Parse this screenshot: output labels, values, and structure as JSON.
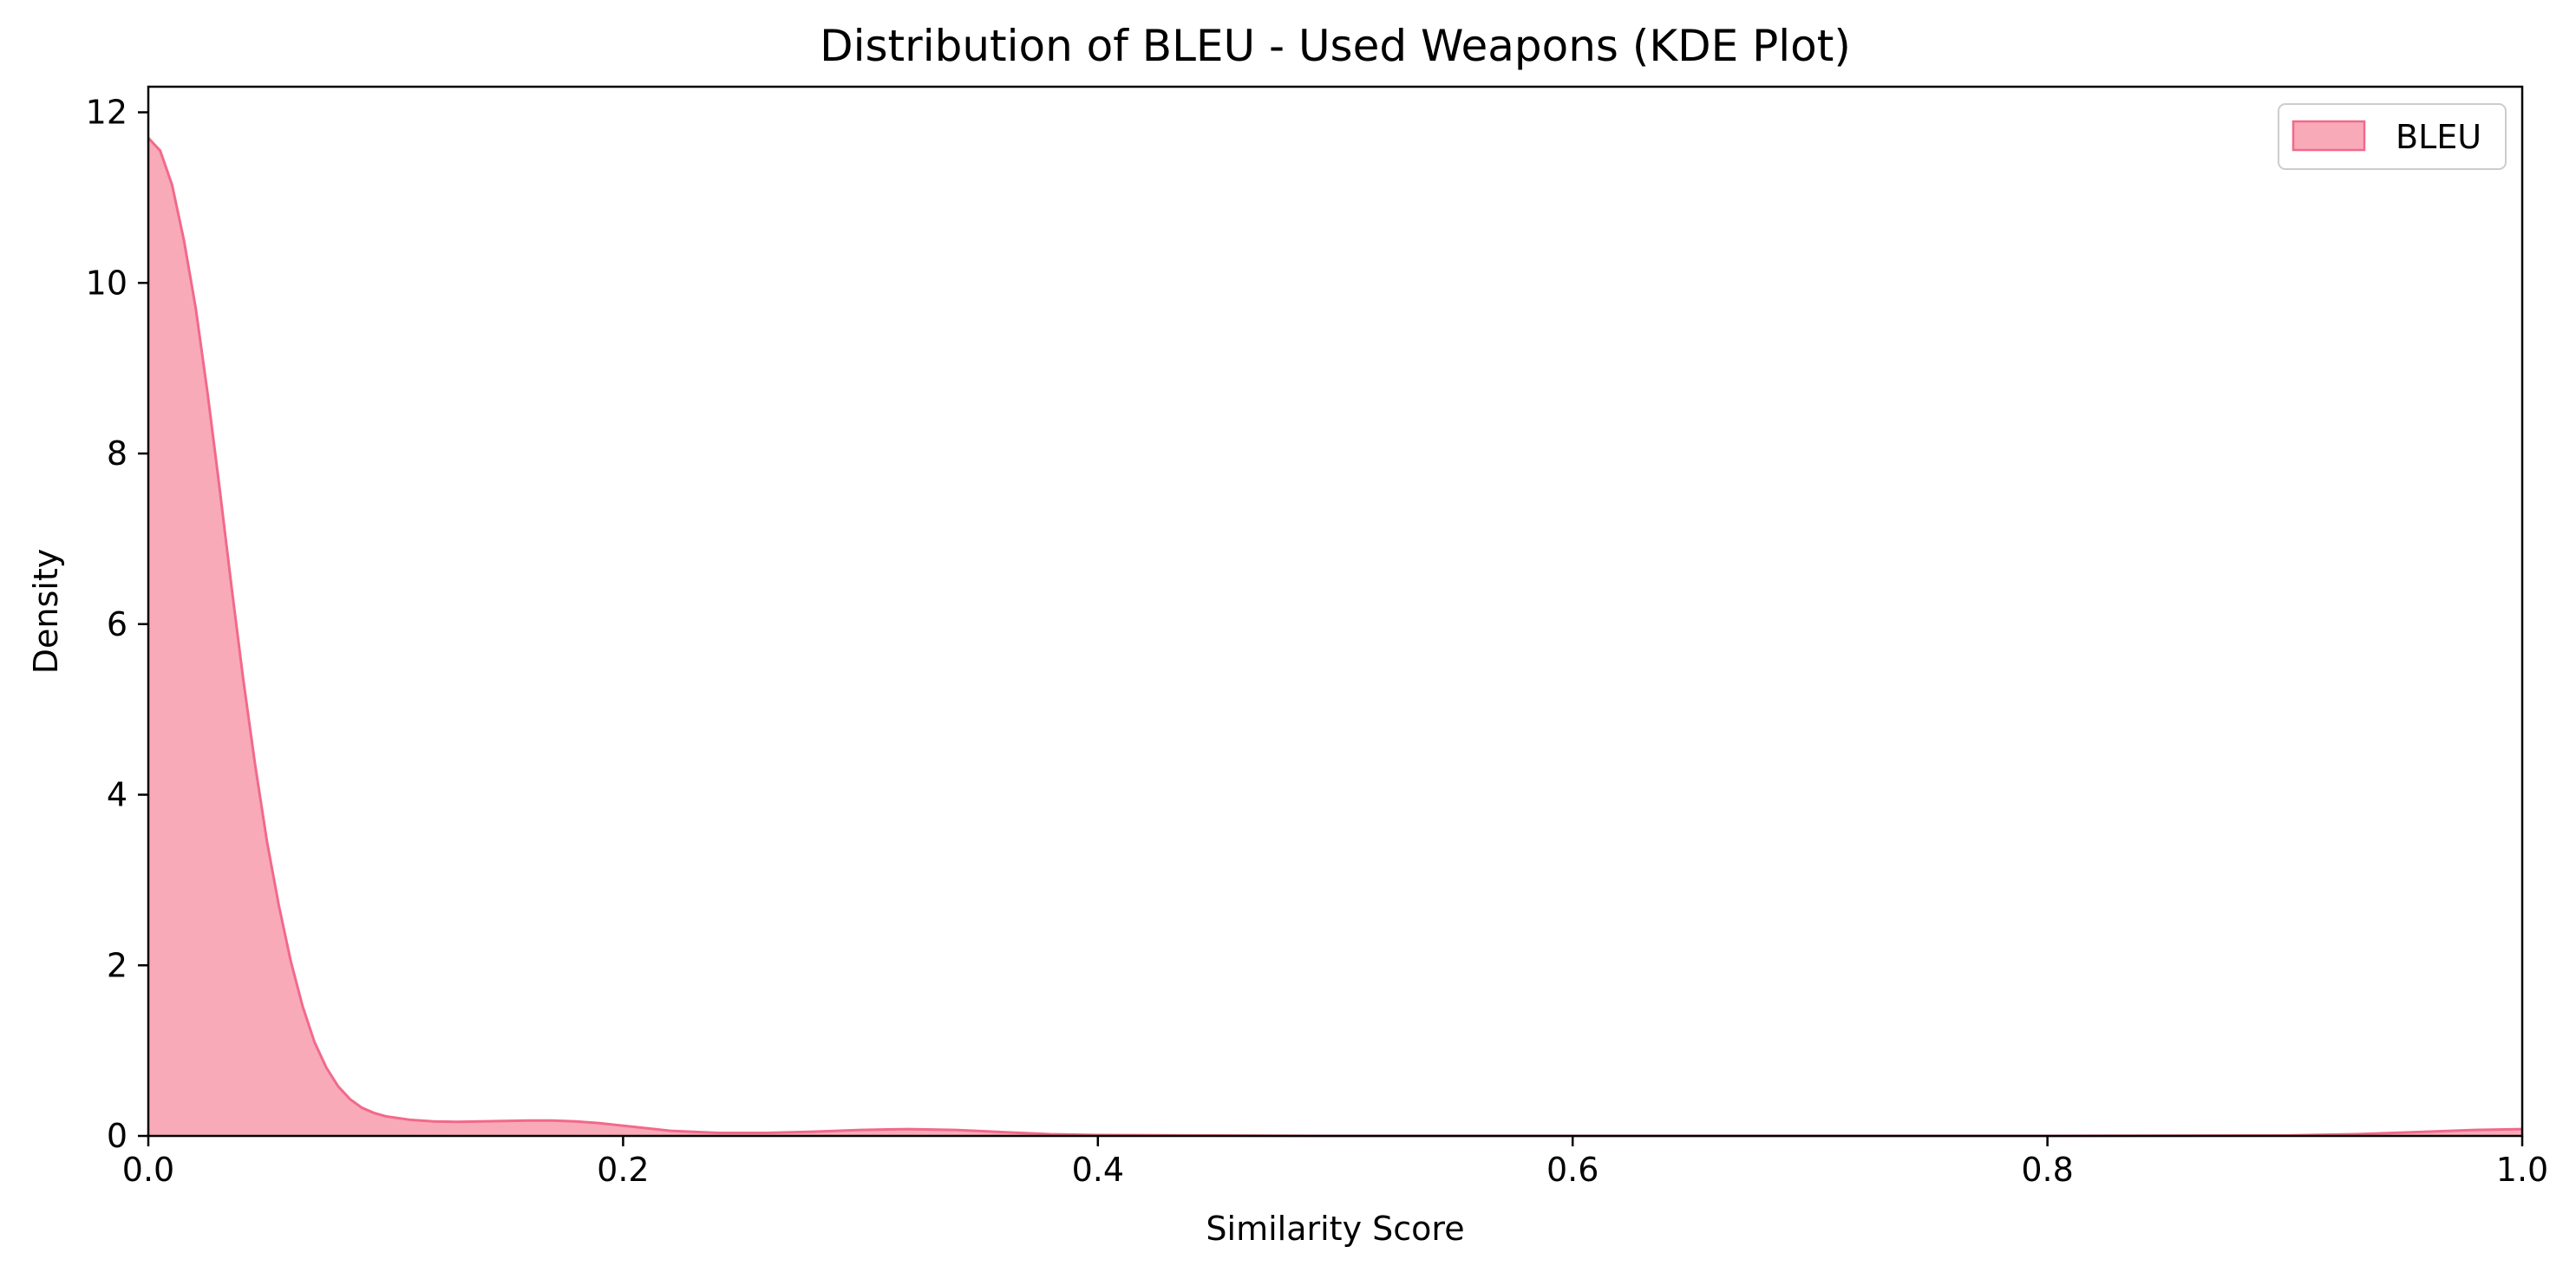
{
  "chart_data": {
    "type": "area",
    "title": "Distribution of BLEU - Used Weapons (KDE Plot)",
    "xlabel": "Similarity Score",
    "ylabel": "Density",
    "xlim": [
      0,
      1
    ],
    "ylim": [
      0,
      12.3
    ],
    "x_ticks": [
      "0.0",
      "0.2",
      "0.4",
      "0.6",
      "0.8",
      "1.0"
    ],
    "y_ticks": [
      "0",
      "2",
      "4",
      "6",
      "8",
      "10",
      "12"
    ],
    "grid": false,
    "legend_position": "top-right",
    "series": [
      {
        "name": "BLEU",
        "color": "#f2698a",
        "fill_color": "#f8aab9",
        "x": [
          0.0,
          0.005,
          0.01,
          0.015,
          0.02,
          0.025,
          0.03,
          0.035,
          0.04,
          0.045,
          0.05,
          0.055,
          0.06,
          0.065,
          0.07,
          0.075,
          0.08,
          0.085,
          0.09,
          0.095,
          0.1,
          0.11,
          0.12,
          0.13,
          0.14,
          0.15,
          0.16,
          0.17,
          0.18,
          0.19,
          0.2,
          0.21,
          0.22,
          0.24,
          0.26,
          0.28,
          0.3,
          0.32,
          0.34,
          0.36,
          0.38,
          0.4,
          0.5,
          0.6,
          0.7,
          0.8,
          0.9,
          0.93,
          0.96,
          0.98,
          1.0
        ],
        "y": [
          11.7,
          11.55,
          11.15,
          10.5,
          9.7,
          8.7,
          7.6,
          6.45,
          5.35,
          4.35,
          3.45,
          2.7,
          2.05,
          1.52,
          1.1,
          0.8,
          0.58,
          0.43,
          0.33,
          0.27,
          0.23,
          0.19,
          0.17,
          0.165,
          0.17,
          0.175,
          0.18,
          0.18,
          0.17,
          0.15,
          0.12,
          0.09,
          0.06,
          0.035,
          0.035,
          0.05,
          0.07,
          0.08,
          0.07,
          0.045,
          0.02,
          0.01,
          0.0,
          0.0,
          0.0,
          0.0,
          0.005,
          0.02,
          0.05,
          0.07,
          0.08
        ]
      }
    ]
  }
}
